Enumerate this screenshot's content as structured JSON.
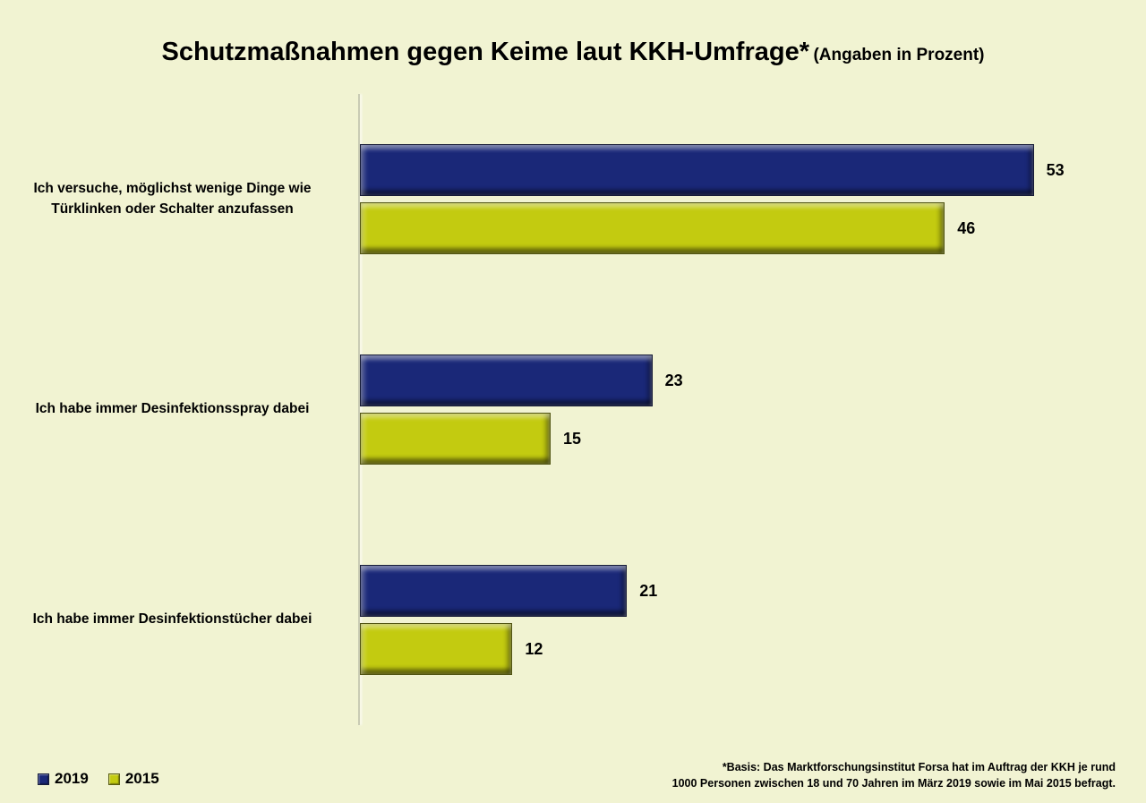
{
  "title": {
    "main": "Schutzmaßnahmen gegen Keime laut KKH-Umfrage*",
    "suffix": "(Angaben in Prozent)"
  },
  "legend": [
    {
      "label": "2019",
      "color": "#1a2878"
    },
    {
      "label": "2015",
      "color": "#c3cb10"
    }
  ],
  "footnote": {
    "line1": "*Basis: Das Marktforschungsinstitut Forsa hat im Auftrag der KKH je rund",
    "line2": "1000 Personen zwischen 18 und 70 Jahren im März 2019 sowie im Mai 2015 befragt."
  },
  "chart_data": {
    "type": "bar",
    "orientation": "horizontal",
    "title": "Schutzmaßnahmen gegen Keime laut KKH-Umfrage* (Angaben in Prozent)",
    "unit": "percent",
    "categories": [
      "Ich versuche, möglichst wenige Dinge wie Türklinken oder Schalter anzufassen",
      "Ich habe immer Desinfektionsspray dabei",
      "Ich habe immer Desinfektionstücher dabei"
    ],
    "series": [
      {
        "name": "2019",
        "color": "#1a2878",
        "values": [
          53,
          23,
          21
        ]
      },
      {
        "name": "2015",
        "color": "#c3cb10",
        "values": [
          46,
          15,
          12
        ]
      }
    ],
    "xlim": [
      0,
      60
    ],
    "grid": false,
    "legend_position": "bottom-left",
    "value_labels": true
  }
}
